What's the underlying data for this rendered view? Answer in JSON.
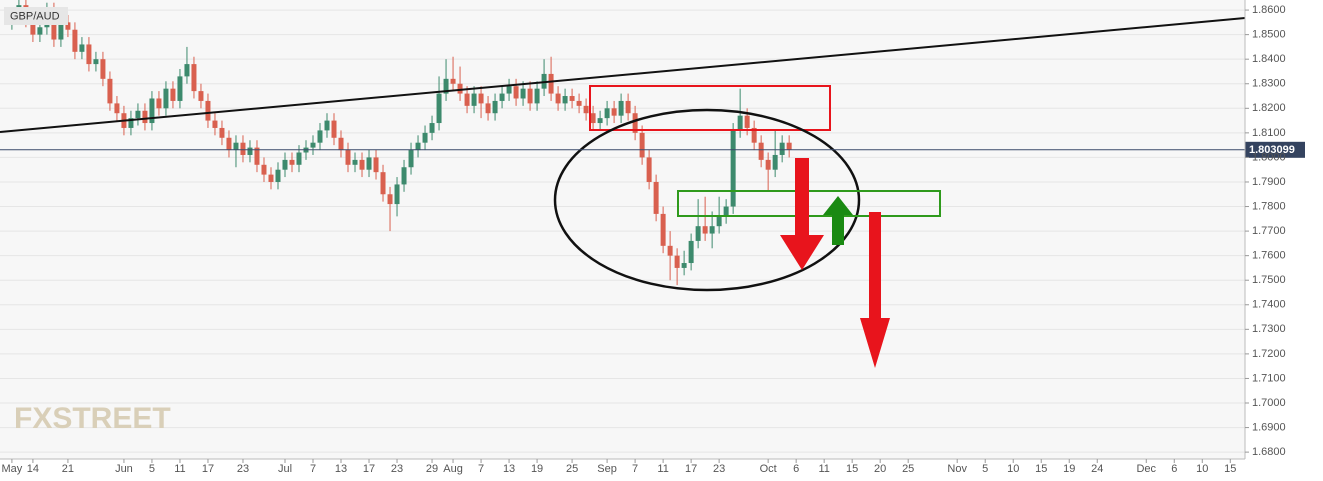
{
  "chart_data": {
    "type": "candlestick",
    "title": "GBP/AUD",
    "watermark": "FXSTREET",
    "last_price": 1.803099,
    "last_price_label": "1.803099",
    "up_color": "#3d8a6d",
    "down_color": "#d9604f",
    "grid": true,
    "ylim": [
      1.6772,
      1.8641
    ],
    "yticks": [
      {
        "value": 1.68,
        "label": "1.6800"
      },
      {
        "value": 1.69,
        "label": "1.6900"
      },
      {
        "value": 1.7,
        "label": "1.7000"
      },
      {
        "value": 1.71,
        "label": "1.7100"
      },
      {
        "value": 1.72,
        "label": "1.7200"
      },
      {
        "value": 1.73,
        "label": "1.7300"
      },
      {
        "value": 1.74,
        "label": "1.7400"
      },
      {
        "value": 1.75,
        "label": "1.7500"
      },
      {
        "value": 1.76,
        "label": "1.7600"
      },
      {
        "value": 1.77,
        "label": "1.7700"
      },
      {
        "value": 1.78,
        "label": "1.7800"
      },
      {
        "value": 1.79,
        "label": "1.7900"
      },
      {
        "value": 1.8,
        "label": "1.8000"
      },
      {
        "value": 1.81,
        "label": "1.8100"
      },
      {
        "value": 1.82,
        "label": "1.8200"
      },
      {
        "value": 1.83,
        "label": "1.8300"
      },
      {
        "value": 1.84,
        "label": "1.8400"
      },
      {
        "value": 1.85,
        "label": "1.8500"
      },
      {
        "value": 1.86,
        "label": "1.8600"
      }
    ],
    "xlim": [
      -1.7,
      176.1
    ],
    "xticks": [
      {
        "value": 0,
        "label": "May"
      },
      {
        "value": 3,
        "label": "14"
      },
      {
        "value": 8,
        "label": "21"
      },
      {
        "value": 16,
        "label": "Jun"
      },
      {
        "value": 20,
        "label": "5"
      },
      {
        "value": 24,
        "label": "11"
      },
      {
        "value": 28,
        "label": "17"
      },
      {
        "value": 33,
        "label": "23"
      },
      {
        "value": 39,
        "label": "Jul"
      },
      {
        "value": 43,
        "label": "7"
      },
      {
        "value": 47,
        "label": "13"
      },
      {
        "value": 51,
        "label": "17"
      },
      {
        "value": 55,
        "label": "23"
      },
      {
        "value": 60,
        "label": "29"
      },
      {
        "value": 63,
        "label": "Aug"
      },
      {
        "value": 67,
        "label": "7"
      },
      {
        "value": 71,
        "label": "13"
      },
      {
        "value": 75,
        "label": "19"
      },
      {
        "value": 80,
        "label": "25"
      },
      {
        "value": 85,
        "label": "Sep"
      },
      {
        "value": 89,
        "label": "7"
      },
      {
        "value": 93,
        "label": "11"
      },
      {
        "value": 97,
        "label": "17"
      },
      {
        "value": 101,
        "label": "23"
      },
      {
        "value": 108,
        "label": "Oct"
      },
      {
        "value": 112,
        "label": "6"
      },
      {
        "value": 116,
        "label": "11"
      },
      {
        "value": 120,
        "label": "15"
      },
      {
        "value": 124,
        "label": "20"
      },
      {
        "value": 128,
        "label": "25"
      },
      {
        "value": 135,
        "label": "Nov"
      },
      {
        "value": 139,
        "label": "5"
      },
      {
        "value": 143,
        "label": "10"
      },
      {
        "value": 147,
        "label": "15"
      },
      {
        "value": 151,
        "label": "19"
      },
      {
        "value": 155,
        "label": "24"
      },
      {
        "value": 162,
        "label": "Dec"
      },
      {
        "value": 166,
        "label": "6"
      },
      {
        "value": 170,
        "label": "10"
      },
      {
        "value": 174,
        "label": "15"
      }
    ],
    "x": [
      0,
      1,
      2,
      3,
      4,
      5,
      6,
      7,
      8,
      9,
      10,
      11,
      12,
      13,
      14,
      15,
      16,
      17,
      18,
      19,
      20,
      21,
      22,
      23,
      24,
      25,
      26,
      27,
      28,
      29,
      30,
      31,
      32,
      33,
      34,
      35,
      36,
      37,
      38,
      39,
      40,
      41,
      42,
      43,
      44,
      45,
      46,
      47,
      48,
      49,
      50,
      51,
      52,
      53,
      54,
      55,
      56,
      57,
      58,
      59,
      60,
      61,
      62,
      63,
      64,
      65,
      66,
      67,
      68,
      69,
      70,
      71,
      72,
      73,
      74,
      75,
      76,
      77,
      78,
      79,
      80,
      81,
      82,
      83,
      84,
      85,
      86,
      87,
      88,
      89,
      90,
      91,
      92,
      93,
      94,
      95,
      96,
      97,
      98,
      99,
      100,
      101,
      102,
      103,
      104,
      105,
      106,
      107,
      108,
      109,
      110,
      111
    ],
    "candles": [
      [
        1.855,
        1.861,
        1.852,
        1.858
      ],
      [
        1.858,
        1.865,
        1.855,
        1.862
      ],
      [
        1.862,
        1.865,
        1.853,
        1.856
      ],
      [
        1.856,
        1.859,
        1.847,
        1.85
      ],
      [
        1.85,
        1.856,
        1.847,
        1.853
      ],
      [
        1.853,
        1.863,
        1.85,
        1.86
      ],
      [
        1.86,
        1.863,
        1.845,
        1.848
      ],
      [
        1.848,
        1.858,
        1.845,
        1.855
      ],
      [
        1.855,
        1.858,
        1.849,
        1.852
      ],
      [
        1.852,
        1.855,
        1.84,
        1.843
      ],
      [
        1.843,
        1.849,
        1.84,
        1.846
      ],
      [
        1.846,
        1.849,
        1.835,
        1.838
      ],
      [
        1.838,
        1.843,
        1.835,
        1.84
      ],
      [
        1.84,
        1.843,
        1.829,
        1.832
      ],
      [
        1.832,
        1.835,
        1.819,
        1.822
      ],
      [
        1.822,
        1.825,
        1.815,
        1.818
      ],
      [
        1.818,
        1.821,
        1.809,
        1.812
      ],
      [
        1.812,
        1.819,
        1.809,
        1.816
      ],
      [
        1.816,
        1.822,
        1.813,
        1.819
      ],
      [
        1.819,
        1.822,
        1.811,
        1.814
      ],
      [
        1.814,
        1.827,
        1.811,
        1.824
      ],
      [
        1.824,
        1.827,
        1.817,
        1.82
      ],
      [
        1.82,
        1.831,
        1.817,
        1.828
      ],
      [
        1.828,
        1.831,
        1.82,
        1.823
      ],
      [
        1.823,
        1.836,
        1.82,
        1.833
      ],
      [
        1.833,
        1.845,
        1.83,
        1.838
      ],
      [
        1.838,
        1.841,
        1.824,
        1.827
      ],
      [
        1.827,
        1.83,
        1.82,
        1.823
      ],
      [
        1.823,
        1.826,
        1.812,
        1.815
      ],
      [
        1.815,
        1.818,
        1.809,
        1.812
      ],
      [
        1.812,
        1.815,
        1.805,
        1.808
      ],
      [
        1.808,
        1.811,
        1.8,
        1.803
      ],
      [
        1.803,
        1.809,
        1.796,
        1.806
      ],
      [
        1.806,
        1.809,
        1.798,
        1.801
      ],
      [
        1.801,
        1.807,
        1.798,
        1.804
      ],
      [
        1.804,
        1.807,
        1.794,
        1.797
      ],
      [
        1.797,
        1.8,
        1.79,
        1.793
      ],
      [
        1.793,
        1.796,
        1.787,
        1.79
      ],
      [
        1.79,
        1.798,
        1.787,
        1.795
      ],
      [
        1.795,
        1.802,
        1.792,
        1.799
      ],
      [
        1.799,
        1.802,
        1.794,
        1.797
      ],
      [
        1.797,
        1.805,
        1.794,
        1.802
      ],
      [
        1.802,
        1.807,
        1.799,
        1.804
      ],
      [
        1.804,
        1.809,
        1.801,
        1.806
      ],
      [
        1.806,
        1.814,
        1.803,
        1.811
      ],
      [
        1.811,
        1.818,
        1.808,
        1.815
      ],
      [
        1.815,
        1.818,
        1.805,
        1.808
      ],
      [
        1.808,
        1.811,
        1.8,
        1.803
      ],
      [
        1.803,
        1.806,
        1.794,
        1.797
      ],
      [
        1.797,
        1.802,
        1.794,
        1.799
      ],
      [
        1.799,
        1.802,
        1.792,
        1.795
      ],
      [
        1.795,
        1.803,
        1.792,
        1.8
      ],
      [
        1.8,
        1.803,
        1.791,
        1.794
      ],
      [
        1.794,
        1.797,
        1.782,
        1.785
      ],
      [
        1.785,
        1.788,
        1.77,
        1.781
      ],
      [
        1.781,
        1.792,
        1.776,
        1.789
      ],
      [
        1.789,
        1.799,
        1.786,
        1.796
      ],
      [
        1.796,
        1.806,
        1.793,
        1.803
      ],
      [
        1.803,
        1.809,
        1.8,
        1.806
      ],
      [
        1.806,
        1.813,
        1.803,
        1.81
      ],
      [
        1.81,
        1.817,
        1.807,
        1.814
      ],
      [
        1.814,
        1.833,
        1.811,
        1.826
      ],
      [
        1.826,
        1.84,
        1.823,
        1.832
      ],
      [
        1.832,
        1.841,
        1.827,
        1.83
      ],
      [
        1.83,
        1.837,
        1.823,
        1.826
      ],
      [
        1.826,
        1.829,
        1.818,
        1.821
      ],
      [
        1.821,
        1.829,
        1.818,
        1.826
      ],
      [
        1.826,
        1.829,
        1.816,
        1.822
      ],
      [
        1.822,
        1.825,
        1.815,
        1.818
      ],
      [
        1.818,
        1.826,
        1.815,
        1.823
      ],
      [
        1.823,
        1.829,
        1.82,
        1.826
      ],
      [
        1.826,
        1.832,
        1.823,
        1.829
      ],
      [
        1.829,
        1.832,
        1.821,
        1.824
      ],
      [
        1.824,
        1.831,
        1.821,
        1.828
      ],
      [
        1.828,
        1.831,
        1.819,
        1.822
      ],
      [
        1.822,
        1.831,
        1.819,
        1.828
      ],
      [
        1.828,
        1.84,
        1.825,
        1.834
      ],
      [
        1.834,
        1.841,
        1.823,
        1.826
      ],
      [
        1.826,
        1.829,
        1.819,
        1.822
      ],
      [
        1.822,
        1.828,
        1.819,
        1.825
      ],
      [
        1.825,
        1.828,
        1.82,
        1.823
      ],
      [
        1.823,
        1.826,
        1.818,
        1.821
      ],
      [
        1.821,
        1.824,
        1.815,
        1.818
      ],
      [
        1.818,
        1.821,
        1.811,
        1.814
      ],
      [
        1.814,
        1.819,
        1.811,
        1.816
      ],
      [
        1.816,
        1.823,
        1.813,
        1.82
      ],
      [
        1.82,
        1.823,
        1.814,
        1.817
      ],
      [
        1.817,
        1.826,
        1.814,
        1.823
      ],
      [
        1.823,
        1.826,
        1.815,
        1.818
      ],
      [
        1.818,
        1.821,
        1.807,
        1.81
      ],
      [
        1.81,
        1.813,
        1.797,
        1.8
      ],
      [
        1.8,
        1.803,
        1.787,
        1.79
      ],
      [
        1.79,
        1.793,
        1.774,
        1.777
      ],
      [
        1.777,
        1.78,
        1.761,
        1.764
      ],
      [
        1.764,
        1.77,
        1.75,
        1.76
      ],
      [
        1.76,
        1.763,
        1.748,
        1.755
      ],
      [
        1.755,
        1.762,
        1.752,
        1.757
      ],
      [
        1.757,
        1.769,
        1.754,
        1.766
      ],
      [
        1.766,
        1.783,
        1.763,
        1.772
      ],
      [
        1.772,
        1.784,
        1.766,
        1.769
      ],
      [
        1.769,
        1.778,
        1.763,
        1.772
      ],
      [
        1.772,
        1.784,
        1.769,
        1.776
      ],
      [
        1.776,
        1.783,
        1.773,
        1.78
      ],
      [
        1.78,
        1.814,
        1.777,
        1.811
      ],
      [
        1.811,
        1.828,
        1.808,
        1.817
      ],
      [
        1.817,
        1.82,
        1.809,
        1.812
      ],
      [
        1.812,
        1.815,
        1.803,
        1.806
      ],
      [
        1.806,
        1.809,
        1.796,
        1.799
      ],
      [
        1.799,
        1.802,
        1.786,
        1.795
      ],
      [
        1.795,
        1.811,
        1.792,
        1.801
      ],
      [
        1.801,
        1.809,
        1.798,
        1.806
      ],
      [
        1.806,
        1.809,
        1.8,
        1.8031
      ]
    ]
  }
}
